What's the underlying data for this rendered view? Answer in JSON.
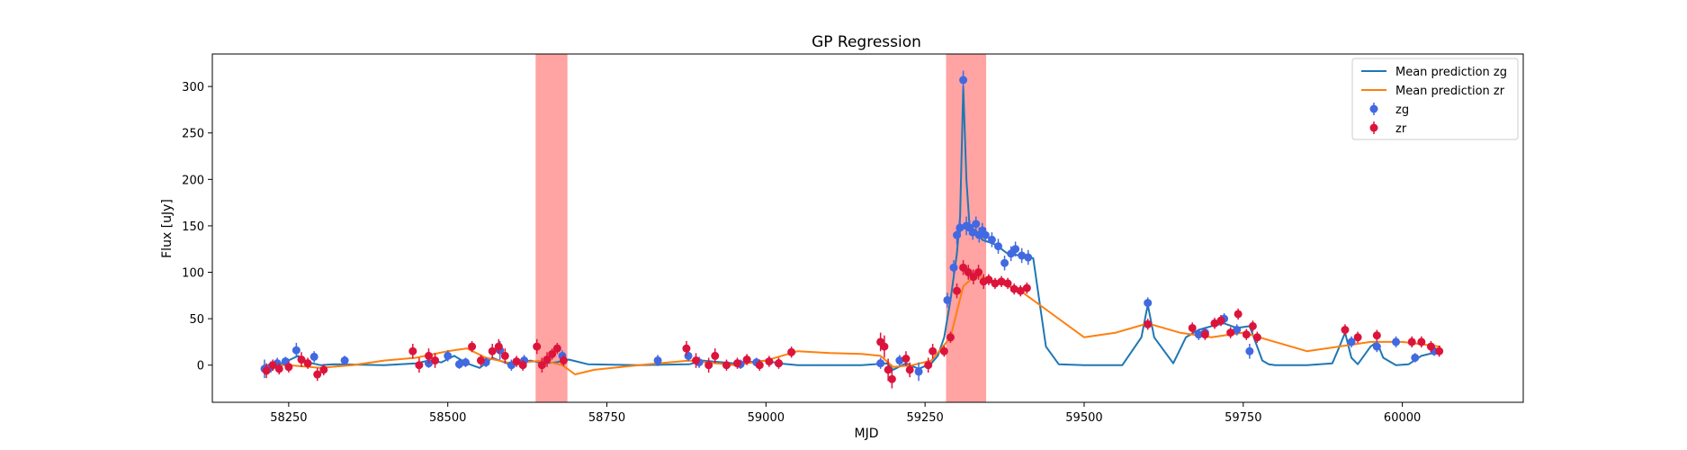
{
  "chart_data": {
    "type": "scatter",
    "title": "GP Regression",
    "xlabel": "MJD",
    "ylabel": "Flux [uJy]",
    "xlim": [
      58130,
      60190
    ],
    "ylim": [
      -40,
      335
    ],
    "xticks": [
      58250,
      58500,
      58750,
      59000,
      59250,
      59500,
      59750,
      60000
    ],
    "yticks": [
      0,
      50,
      100,
      150,
      200,
      250,
      300
    ],
    "grid": false,
    "legend": {
      "placement": "top-right"
    },
    "shaded_regions": [
      {
        "x": [
          58638,
          58688
        ],
        "color": "#ff6666"
      },
      {
        "x": [
          59283,
          59346
        ],
        "color": "#ff6666"
      }
    ],
    "series": [
      {
        "name": "Mean prediction zg",
        "kind": "line",
        "color": "#1f77b4",
        "x": [
          58210,
          58240,
          58265,
          58280,
          58300,
          58320,
          58400,
          58450,
          58470,
          58490,
          58510,
          58530,
          58550,
          58570,
          58600,
          58630,
          58650,
          58670,
          58690,
          58720,
          58800,
          58880,
          58900,
          58950,
          59000,
          59020,
          59050,
          59080,
          59150,
          59190,
          59200,
          59220,
          59240,
          59260,
          59270,
          59280,
          59290,
          59300,
          59305,
          59310,
          59315,
          59320,
          59330,
          59340,
          59360,
          59380,
          59400,
          59420,
          59440,
          59460,
          59500,
          59560,
          59590,
          59600,
          59610,
          59640,
          59660,
          59680,
          59700,
          59720,
          59740,
          59760,
          59780,
          59790,
          59800,
          59850,
          59890,
          59900,
          59910,
          59920,
          59930,
          59950,
          59960,
          59970,
          59990,
          60010,
          60030,
          60060
        ],
        "y": [
          -3,
          2,
          10,
          3,
          0,
          1,
          0,
          2,
          5,
          3,
          10,
          2,
          -3,
          8,
          0,
          5,
          2,
          3,
          6,
          1,
          0,
          1,
          5,
          2,
          5,
          2,
          0,
          0,
          0,
          2,
          -5,
          2,
          -4,
          2,
          10,
          30,
          70,
          120,
          160,
          300,
          200,
          148,
          145,
          135,
          130,
          120,
          118,
          115,
          20,
          1,
          0,
          0,
          30,
          65,
          30,
          2,
          30,
          38,
          42,
          45,
          40,
          42,
          5,
          1,
          0,
          0,
          2,
          18,
          35,
          8,
          1,
          20,
          25,
          8,
          0,
          1,
          10,
          15
        ]
      },
      {
        "name": "Mean prediction zr",
        "kind": "line",
        "color": "#ff7f0e",
        "x": [
          58210,
          58250,
          58300,
          58350,
          58400,
          58450,
          58500,
          58530,
          58560,
          58600,
          58650,
          58680,
          58700,
          58730,
          58800,
          58880,
          58950,
          59000,
          59050,
          59100,
          59150,
          59180,
          59200,
          59230,
          59260,
          59290,
          59310,
          59330,
          59360,
          59400,
          59450,
          59500,
          59550,
          59600,
          59650,
          59700,
          59750,
          59800,
          59850,
          59900,
          59950,
          60000,
          60060
        ],
        "y": [
          0,
          0,
          -3,
          0,
          5,
          8,
          15,
          18,
          8,
          2,
          5,
          0,
          -10,
          -5,
          0,
          5,
          0,
          5,
          15,
          13,
          12,
          10,
          -2,
          0,
          5,
          30,
          85,
          97,
          90,
          80,
          55,
          30,
          35,
          45,
          35,
          30,
          35,
          25,
          15,
          20,
          25,
          25,
          20
        ]
      },
      {
        "name": "zg",
        "kind": "errorbar",
        "color": "#4169e1",
        "x": [
          58212,
          58222,
          58232,
          58245,
          58262,
          58290,
          58338,
          58470,
          58500,
          58518,
          58528,
          58560,
          58582,
          58600,
          58620,
          58680,
          58830,
          58878,
          58895,
          58960,
          58985,
          59020,
          59180,
          59210,
          59240,
          59285,
          59295,
          59300,
          59305,
          59310,
          59315,
          59320,
          59325,
          59330,
          59335,
          59340,
          59345,
          59355,
          59365,
          59375,
          59385,
          59392,
          59402,
          59412,
          59600,
          59680,
          59690,
          59720,
          59740,
          59760,
          59920,
          59960,
          59990,
          60020,
          60050
        ],
        "y": [
          -4,
          -2,
          2,
          4,
          16,
          9,
          5,
          2,
          10,
          1,
          3,
          3,
          16,
          0,
          5,
          10,
          5,
          10,
          3,
          1,
          3,
          2,
          2,
          5,
          -7,
          70,
          105,
          140,
          148,
          307,
          150,
          148,
          143,
          152,
          140,
          145,
          140,
          135,
          128,
          110,
          120,
          125,
          118,
          116,
          67,
          33,
          35,
          50,
          38,
          15,
          25,
          20,
          25,
          8,
          15
        ],
        "yerr": [
          10,
          6,
          6,
          5,
          8,
          6,
          5,
          5,
          6,
          5,
          5,
          5,
          10,
          6,
          6,
          6,
          6,
          6,
          6,
          5,
          5,
          5,
          6,
          6,
          10,
          8,
          8,
          10,
          10,
          10,
          10,
          8,
          8,
          8,
          8,
          8,
          8,
          8,
          8,
          8,
          8,
          8,
          8,
          8,
          6,
          6,
          6,
          6,
          6,
          8,
          6,
          6,
          6,
          5,
          5
        ]
      },
      {
        "name": "zr",
        "kind": "errorbar",
        "color": "#dc143c",
        "x": [
          58215,
          58225,
          58235,
          58250,
          58270,
          58280,
          58295,
          58305,
          58445,
          58455,
          58470,
          58480,
          58538,
          58552,
          58570,
          58580,
          58590,
          58608,
          58618,
          58640,
          58648,
          58656,
          58664,
          58672,
          58682,
          58875,
          58890,
          58910,
          58920,
          58938,
          58955,
          58970,
          58990,
          59005,
          59020,
          59040,
          59180,
          59186,
          59192,
          59198,
          59220,
          59226,
          59255,
          59262,
          59280,
          59290,
          59300,
          59310,
          59318,
          59326,
          59334,
          59342,
          59350,
          59360,
          59370,
          59380,
          59390,
          59400,
          59410,
          59600,
          59670,
          59690,
          59705,
          59715,
          59730,
          59742,
          59755,
          59765,
          59772,
          59910,
          59930,
          59960,
          60015,
          60030,
          60045,
          60058
        ],
        "y": [
          -6,
          0,
          -4,
          -2,
          6,
          2,
          -10,
          -5,
          15,
          0,
          10,
          5,
          20,
          5,
          15,
          20,
          10,
          4,
          0,
          20,
          0,
          6,
          12,
          18,
          5,
          18,
          5,
          0,
          10,
          0,
          2,
          6,
          0,
          4,
          2,
          14,
          25,
          20,
          -5,
          -15,
          7,
          -5,
          0,
          15,
          15,
          30,
          80,
          105,
          100,
          95,
          100,
          90,
          92,
          88,
          90,
          88,
          82,
          80,
          83,
          44,
          40,
          33,
          45,
          48,
          35,
          55,
          33,
          42,
          30,
          38,
          30,
          32,
          25,
          25,
          20,
          15
        ],
        "yerr": [
          8,
          6,
          6,
          6,
          8,
          6,
          7,
          6,
          8,
          8,
          8,
          8,
          6,
          6,
          8,
          8,
          8,
          6,
          6,
          8,
          8,
          8,
          6,
          6,
          6,
          8,
          8,
          8,
          8,
          6,
          6,
          6,
          6,
          6,
          6,
          6,
          10,
          12,
          12,
          10,
          8,
          8,
          8,
          8,
          6,
          6,
          8,
          8,
          8,
          8,
          8,
          8,
          6,
          6,
          6,
          6,
          6,
          6,
          6,
          6,
          6,
          6,
          6,
          6,
          6,
          6,
          6,
          6,
          6,
          6,
          6,
          6,
          6,
          6,
          6,
          6
        ]
      }
    ]
  }
}
